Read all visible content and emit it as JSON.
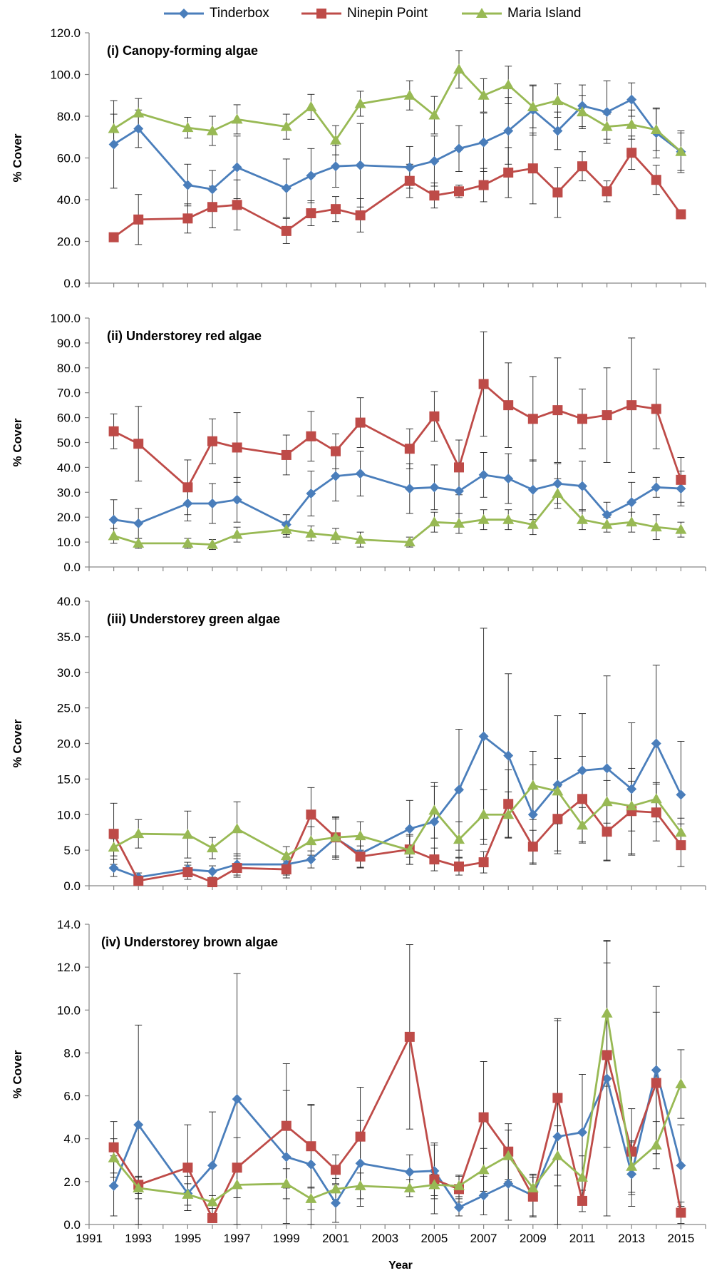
{
  "legend": [
    {
      "name": "Tinderbox",
      "color": "#4a7ebb",
      "marker": "diamond"
    },
    {
      "name": "Ninepin Point",
      "color": "#be4b48",
      "marker": "square"
    },
    {
      "name": "Maria Island",
      "color": "#98b954",
      "marker": "triangle"
    }
  ],
  "xlabel": "Year",
  "ylabel": "% Cover",
  "xticks": [
    "1991",
    "1993",
    "1995",
    "1997",
    "1999",
    "2001",
    "2003",
    "2005",
    "2007",
    "2009",
    "2011",
    "2013",
    "2015"
  ],
  "chart_data": [
    {
      "type": "line",
      "title": "(i) Canopy-forming algae",
      "ylabel": "% Cover",
      "ylim": [
        0,
        120
      ],
      "ystep": 20,
      "yticks": [
        "0.0",
        "20.0",
        "40.0",
        "60.0",
        "80.0",
        "100.0",
        "120.0"
      ],
      "series": [
        {
          "name": "Tinderbox",
          "color": "#4a7ebb",
          "marker": "diamond",
          "x": [
            1992,
            1993,
            1995,
            1996,
            1997,
            1999,
            2000,
            2001,
            2002,
            2004,
            2005,
            2006,
            2007,
            2008,
            2009,
            2010,
            2011,
            2012,
            2013,
            2014,
            2015
          ],
          "y": [
            66.5,
            74,
            47,
            45,
            55.5,
            45.5,
            51.5,
            56,
            56.5,
            55.5,
            58.5,
            64.5,
            67.5,
            73,
            83,
            73,
            85,
            82,
            88,
            72,
            63
          ],
          "err": [
            21,
            9,
            10,
            9,
            15,
            14,
            13,
            10,
            20,
            10,
            12,
            11,
            14,
            16,
            12,
            9,
            10,
            15,
            8,
            12,
            9
          ]
        },
        {
          "name": "Ninepin Point",
          "color": "#be4b48",
          "marker": "square",
          "x": [
            1992,
            1993,
            1995,
            1996,
            1997,
            1999,
            2000,
            2001,
            2002,
            2004,
            2005,
            2006,
            2007,
            2008,
            2009,
            2010,
            2011,
            2012,
            2013,
            2014,
            2015
          ],
          "y": [
            22,
            30.5,
            31,
            36.5,
            37.5,
            25,
            33.5,
            35.5,
            32.5,
            49,
            42,
            44,
            47,
            53,
            55,
            43.5,
            56,
            44,
            62.5,
            49.5,
            33
          ],
          "err": [
            2,
            12,
            7,
            10,
            12,
            6,
            6,
            6,
            8,
            8,
            6,
            3,
            8,
            12,
            17,
            12,
            7,
            5,
            8,
            7,
            0
          ]
        },
        {
          "name": "Maria Island",
          "color": "#98b954",
          "marker": "triangle",
          "x": [
            1992,
            1993,
            1995,
            1996,
            1997,
            1999,
            2000,
            2001,
            2002,
            2004,
            2005,
            2006,
            2007,
            2008,
            2009,
            2010,
            2011,
            2012,
            2013,
            2014,
            2015
          ],
          "y": [
            74,
            81.5,
            74.5,
            73,
            78.5,
            75,
            84.5,
            68.5,
            86,
            90,
            80.5,
            102.5,
            90,
            95,
            84.5,
            87.5,
            82,
            75,
            76,
            73.5,
            63
          ],
          "err": [
            7,
            7,
            5,
            7,
            7,
            6,
            6,
            7,
            6,
            7,
            9,
            9,
            8,
            9,
            10,
            8,
            8,
            6,
            7,
            10,
            10
          ]
        }
      ]
    },
    {
      "type": "line",
      "title": "(ii) Understorey red algae",
      "ylabel": "% Cover",
      "ylim": [
        0,
        100
      ],
      "ystep": 10,
      "yticks": [
        "0.0",
        "10.0",
        "20.0",
        "30.0",
        "40.0",
        "50.0",
        "60.0",
        "70.0",
        "80.0",
        "90.0",
        "100.0"
      ],
      "series": [
        {
          "name": "Tinderbox",
          "color": "#4a7ebb",
          "marker": "diamond",
          "x": [
            1992,
            1993,
            1995,
            1996,
            1997,
            1999,
            2000,
            2001,
            2002,
            2004,
            2005,
            2006,
            2007,
            2008,
            2009,
            2010,
            2011,
            2012,
            2013,
            2014,
            2015
          ],
          "y": [
            19,
            17.5,
            25.5,
            25.5,
            27,
            17,
            29.5,
            36.5,
            37.5,
            31.5,
            32,
            30.5,
            37,
            35.5,
            31,
            33.5,
            32.5,
            21,
            26,
            32,
            31.5
          ],
          "err": [
            8,
            6,
            7,
            8,
            9,
            4,
            9,
            10,
            9,
            10,
            9,
            9,
            9,
            10,
            12,
            8,
            10,
            5,
            8,
            4,
            7
          ]
        },
        {
          "name": "Ninepin Point",
          "color": "#be4b48",
          "marker": "square",
          "x": [
            1992,
            1993,
            1995,
            1996,
            1997,
            1999,
            2000,
            2001,
            2002,
            2004,
            2005,
            2006,
            2007,
            2008,
            2009,
            2010,
            2011,
            2012,
            2013,
            2014,
            2015
          ],
          "y": [
            54.5,
            49.5,
            32,
            50.5,
            48,
            45,
            52.5,
            46.5,
            58,
            47.5,
            60.5,
            40,
            73.5,
            65,
            59.5,
            63,
            59.5,
            61,
            65,
            63.5,
            35
          ],
          "err": [
            7,
            15,
            11,
            9,
            14,
            8,
            10,
            7,
            10,
            8,
            10,
            11,
            21,
            17,
            17,
            21,
            12,
            19,
            27,
            16,
            9
          ]
        },
        {
          "name": "Maria Island",
          "color": "#98b954",
          "marker": "triangle",
          "x": [
            1992,
            1993,
            1995,
            1996,
            1997,
            1999,
            2000,
            2001,
            2002,
            2004,
            2005,
            2006,
            2007,
            2008,
            2009,
            2010,
            2011,
            2012,
            2013,
            2014,
            2015
          ],
          "y": [
            12.5,
            9.5,
            9.5,
            9,
            13,
            15,
            13.5,
            12.5,
            11,
            10,
            18,
            17.5,
            19,
            19,
            17,
            29.5,
            19,
            17,
            18,
            16,
            15
          ],
          "err": [
            3,
            2,
            2,
            2,
            3,
            3,
            3,
            3,
            3,
            2,
            4,
            4,
            4,
            4,
            4,
            6,
            4,
            3,
            4,
            5,
            3
          ]
        }
      ]
    },
    {
      "type": "line",
      "title": "(iii) Understorey green algae",
      "ylabel": "% Cover",
      "ylim": [
        0,
        40
      ],
      "ystep": 5,
      "yticks": [
        "0.0",
        "5.0",
        "10.0",
        "15.0",
        "20.0",
        "25.0",
        "30.0",
        "35.0",
        "40.0"
      ],
      "series": [
        {
          "name": "Tinderbox",
          "color": "#4a7ebb",
          "marker": "diamond",
          "x": [
            1992,
            1993,
            1995,
            1996,
            1997,
            1999,
            2000,
            2001,
            2002,
            2004,
            2005,
            2006,
            2007,
            2008,
            2009,
            2010,
            2011,
            2012,
            2013,
            2014,
            2015
          ],
          "y": [
            2.5,
            1.2,
            2.3,
            2,
            3,
            3,
            3.7,
            6.7,
            4.5,
            8,
            9,
            13.5,
            21,
            18.3,
            10,
            14.2,
            16.2,
            16.5,
            13.6,
            20,
            12.8
          ],
          "err": [
            1.2,
            0.6,
            1,
            0.8,
            1.5,
            1.5,
            1.2,
            3,
            2,
            4,
            5,
            8.5,
            15.2,
            11.5,
            7,
            9.7,
            8,
            13,
            9.3,
            11,
            7.5
          ]
        },
        {
          "name": "Ninepin Point",
          "color": "#be4b48",
          "marker": "square",
          "x": [
            1992,
            1993,
            1995,
            1996,
            1997,
            1999,
            2000,
            2001,
            2002,
            2004,
            2005,
            2006,
            2007,
            2008,
            2009,
            2010,
            2011,
            2012,
            2013,
            2014,
            2015
          ],
          "y": [
            7.3,
            0.7,
            1.9,
            0.5,
            2.5,
            2.3,
            10,
            6.8,
            4.1,
            5.1,
            3.7,
            2.7,
            3.3,
            11.5,
            5.5,
            9.4,
            12.2,
            7.6,
            10.5,
            10.3,
            5.7
          ],
          "err": [
            4.3,
            0.5,
            1,
            0.3,
            1.3,
            1.2,
            3.8,
            2.8,
            1.5,
            2.1,
            1.6,
            1.2,
            1.5,
            4.8,
            2.3,
            4.5,
            6,
            4,
            6,
            4,
            3
          ]
        },
        {
          "name": "Maria Island",
          "color": "#98b954",
          "marker": "triangle",
          "x": [
            1992,
            1993,
            1995,
            1996,
            1997,
            1999,
            2000,
            2001,
            2002,
            2004,
            2005,
            2006,
            2007,
            2008,
            2009,
            2010,
            2011,
            2012,
            2013,
            2014,
            2015
          ],
          "y": [
            5.4,
            7.3,
            7.2,
            5.3,
            8,
            4.2,
            6.3,
            6.8,
            7,
            5,
            10.6,
            6.5,
            10,
            10,
            14.1,
            13.3,
            8.5,
            11.8,
            11.2,
            12.2,
            7.5
          ],
          "err": [
            1.2,
            2,
            3.3,
            1.5,
            3.8,
            1.3,
            2,
            2.6,
            2,
            2,
            3.9,
            2.5,
            3.5,
            3.2,
            4.8,
            4.6,
            2.5,
            3,
            3.5,
            2.3,
            2
          ]
        }
      ]
    },
    {
      "type": "line",
      "title": "(iv) Understorey brown algae",
      "ylabel": "% Cover",
      "ylim": [
        0,
        14
      ],
      "ystep": 2,
      "yticks": [
        "0.0",
        "2.0",
        "4.0",
        "6.0",
        "8.0",
        "10.0",
        "12.0",
        "14.0"
      ],
      "series": [
        {
          "name": "Tinderbox",
          "color": "#4a7ebb",
          "marker": "diamond",
          "x": [
            1992,
            1993,
            1995,
            1996,
            1997,
            1999,
            2000,
            2001,
            2002,
            2004,
            2005,
            2006,
            2007,
            2008,
            2009,
            2010,
            2011,
            2012,
            2013,
            2014,
            2015
          ],
          "y": [
            1.8,
            4.65,
            1.45,
            2.75,
            5.85,
            3.15,
            2.8,
            1,
            2.85,
            2.45,
            2.5,
            0.8,
            1.35,
            1.9,
            1.35,
            4.1,
            4.3,
            6.8,
            2.35,
            7.2,
            2.75
          ],
          "err": [
            1.4,
            4.65,
            0.8,
            2.5,
            5.85,
            3.1,
            2.8,
            0.9,
            2,
            0.8,
            1.3,
            0.4,
            0.9,
            1.7,
            1,
            5.5,
            2.7,
            6.4,
            1.5,
            3.9,
            1.9
          ]
        },
        {
          "name": "Ninepin Point",
          "color": "#be4b48",
          "marker": "square",
          "x": [
            1992,
            1993,
            1995,
            1996,
            1997,
            1999,
            2000,
            2001,
            2002,
            2004,
            2005,
            2006,
            2007,
            2008,
            2009,
            2010,
            2011,
            2012,
            2013,
            2014,
            2015
          ],
          "y": [
            3.6,
            1.85,
            2.65,
            0.3,
            2.65,
            4.6,
            3.65,
            2.55,
            4.1,
            8.75,
            2.1,
            1.65,
            5,
            3.4,
            1.3,
            5.9,
            1.1,
            7.9,
            3.4,
            6.6,
            0.55
          ],
          "err": [
            1.2,
            0.4,
            2,
            0.2,
            1.4,
            2.9,
            1.9,
            0.7,
            2.3,
            4.3,
            1.6,
            0.6,
            2.6,
            1.3,
            0.9,
            3.6,
            0.5,
            4.3,
            2,
            3.3,
            0.5
          ]
        },
        {
          "name": "Maria Island",
          "color": "#98b954",
          "marker": "triangle",
          "x": [
            1992,
            1993,
            1995,
            1996,
            1997,
            1999,
            2000,
            2001,
            2002,
            2004,
            2005,
            2006,
            2007,
            2008,
            2009,
            2010,
            2011,
            2012,
            2013,
            2014,
            2015
          ],
          "y": [
            3.1,
            1.7,
            1.4,
            1.05,
            1.85,
            1.9,
            1.2,
            1.65,
            1.8,
            1.7,
            1.85,
            1.8,
            2.55,
            3.2,
            1.7,
            3.2,
            2.2,
            9.85,
            2.7,
            3.7,
            6.55
          ],
          "err": [
            0.9,
            0.5,
            0.5,
            0.3,
            0.6,
            0.7,
            0.5,
            0.5,
            0.6,
            0.4,
            0.5,
            0.5,
            1,
            1.2,
            0.6,
            1.4,
            1,
            3.4,
            1.2,
            1.1,
            1.6
          ]
        }
      ]
    }
  ]
}
